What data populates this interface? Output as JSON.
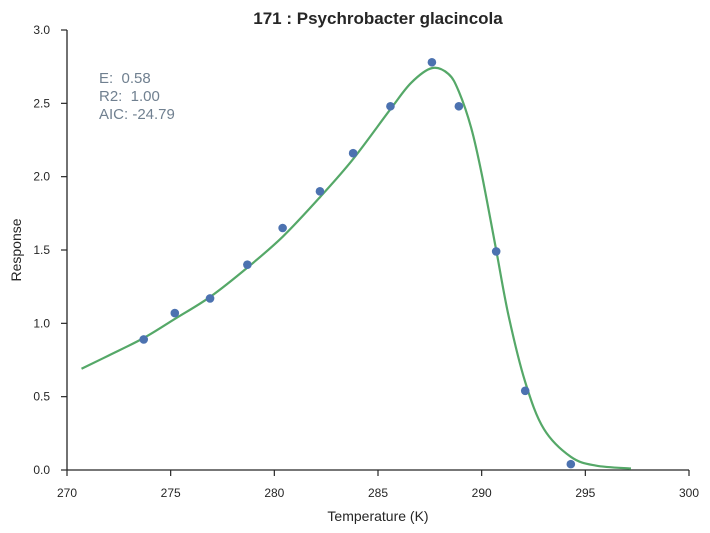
{
  "chart_data": {
    "type": "scatter",
    "title": "171 : Psychrobacter glacincola",
    "xlabel": "Temperature (K)",
    "ylabel": "Response",
    "xlim": [
      270,
      300
    ],
    "ylim": [
      0,
      3.0
    ],
    "xticks": [
      "270",
      "275",
      "280",
      "285",
      "290",
      "295",
      "300"
    ],
    "yticks": [
      "0.0",
      "0.5",
      "1.0",
      "1.5",
      "2.0",
      "2.5",
      "3.0"
    ],
    "grid": false,
    "series": [
      {
        "kind": "points",
        "color": "#4c72b0",
        "x": [
          273.7,
          275.2,
          276.9,
          278.7,
          280.4,
          282.2,
          283.8,
          285.6,
          287.6,
          288.9,
          290.7,
          292.1,
          294.3
        ],
        "y": [
          0.89,
          1.07,
          1.17,
          1.4,
          1.65,
          1.9,
          2.16,
          2.48,
          2.78,
          2.48,
          1.49,
          0.54,
          0.04
        ]
      },
      {
        "kind": "fit-line",
        "color": "#55a868",
        "x": [
          270.7,
          272,
          273.7,
          275.2,
          276.9,
          278.7,
          280.4,
          282.2,
          283.8,
          285.6,
          286.6,
          287.6,
          288.4,
          288.9,
          289.5,
          290.0,
          290.7,
          291.3,
          292.1,
          293.0,
          294.3,
          295.5,
          297.2
        ],
        "y": [
          0.69,
          0.78,
          0.9,
          1.03,
          1.18,
          1.38,
          1.59,
          1.86,
          2.12,
          2.46,
          2.64,
          2.74,
          2.7,
          2.58,
          2.33,
          2.02,
          1.5,
          1.05,
          0.6,
          0.28,
          0.09,
          0.03,
          0.01
        ]
      }
    ],
    "annotation": {
      "color": "#708090",
      "lines": [
        "E:  0.58",
        "R2:  1.00",
        "AIC: -24.79"
      ]
    }
  }
}
